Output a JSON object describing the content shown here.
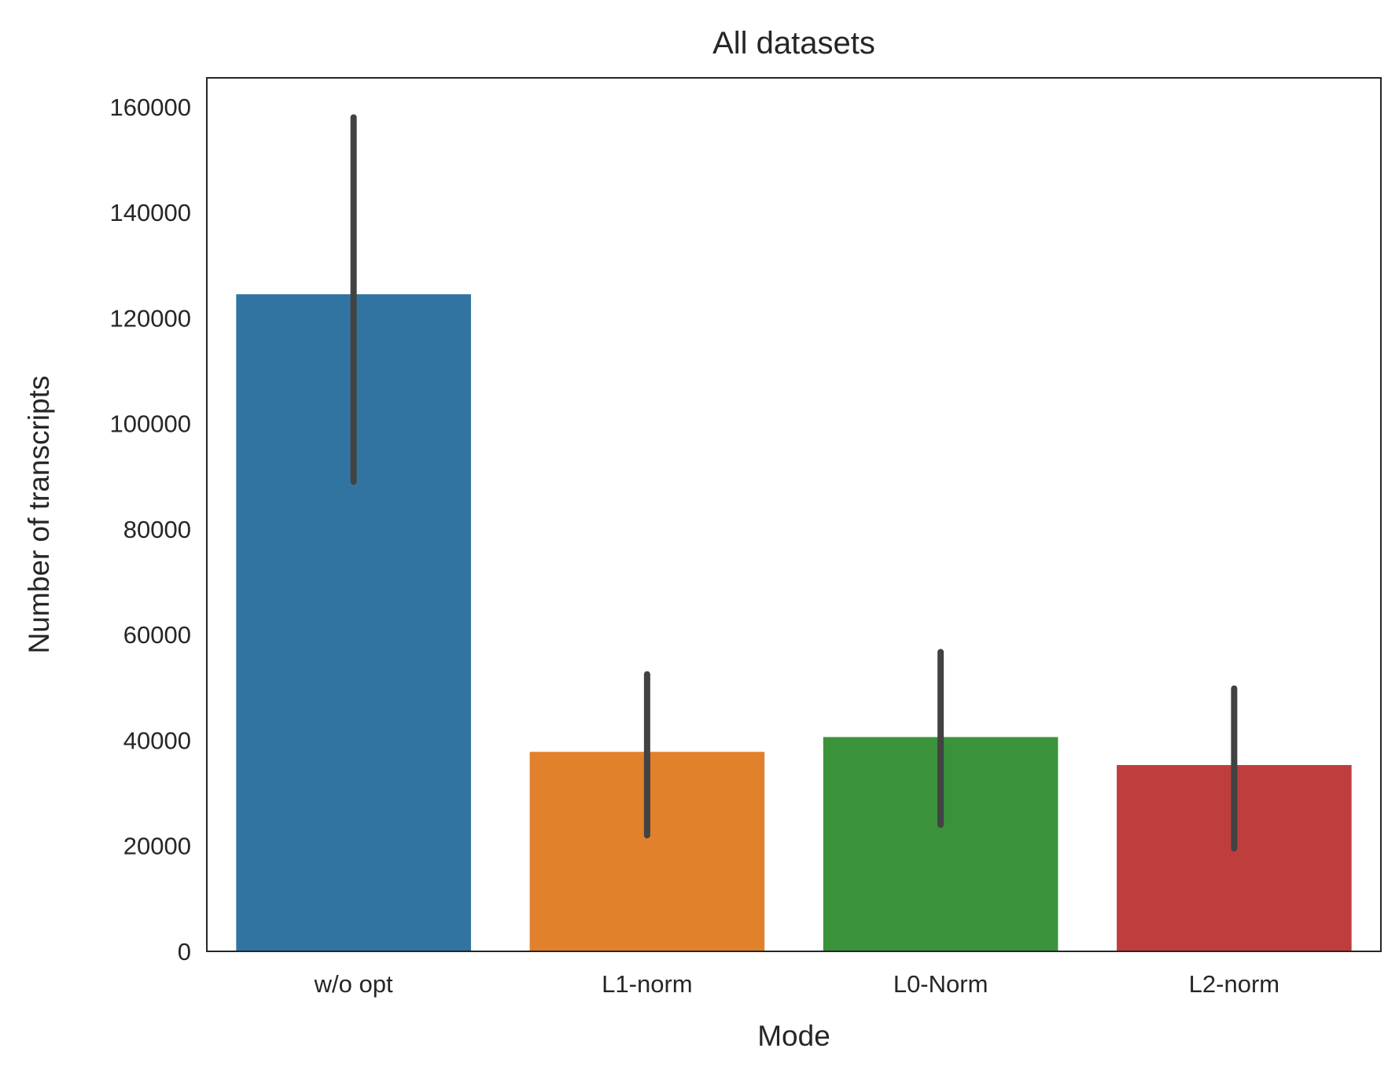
{
  "chart_data": {
    "type": "bar",
    "title": "All datasets",
    "xlabel": "Mode",
    "ylabel": "Number of transcripts",
    "categories": [
      "w/o opt",
      "L1-norm",
      "L0-Norm",
      "L2-norm"
    ],
    "values": [
      124500,
      37800,
      40600,
      35300
    ],
    "error_bars": [
      {
        "low": 89000,
        "high": 158000
      },
      {
        "low": 22000,
        "high": 52500
      },
      {
        "low": 24000,
        "high": 56700
      },
      {
        "low": 19500,
        "high": 49800
      }
    ],
    "colors": [
      "#3274a1",
      "#e1812c",
      "#3a923a",
      "#c03d3e"
    ],
    "errorbar_color": "#424242",
    "ylim": [
      0,
      165500
    ],
    "yticks": [
      0,
      20000,
      40000,
      60000,
      80000,
      100000,
      120000,
      140000,
      160000
    ],
    "ytick_labels": [
      "0",
      "20000",
      "40000",
      "60000",
      "80000",
      "100000",
      "120000",
      "140000",
      "160000"
    ],
    "grid": false,
    "legend": "none"
  }
}
